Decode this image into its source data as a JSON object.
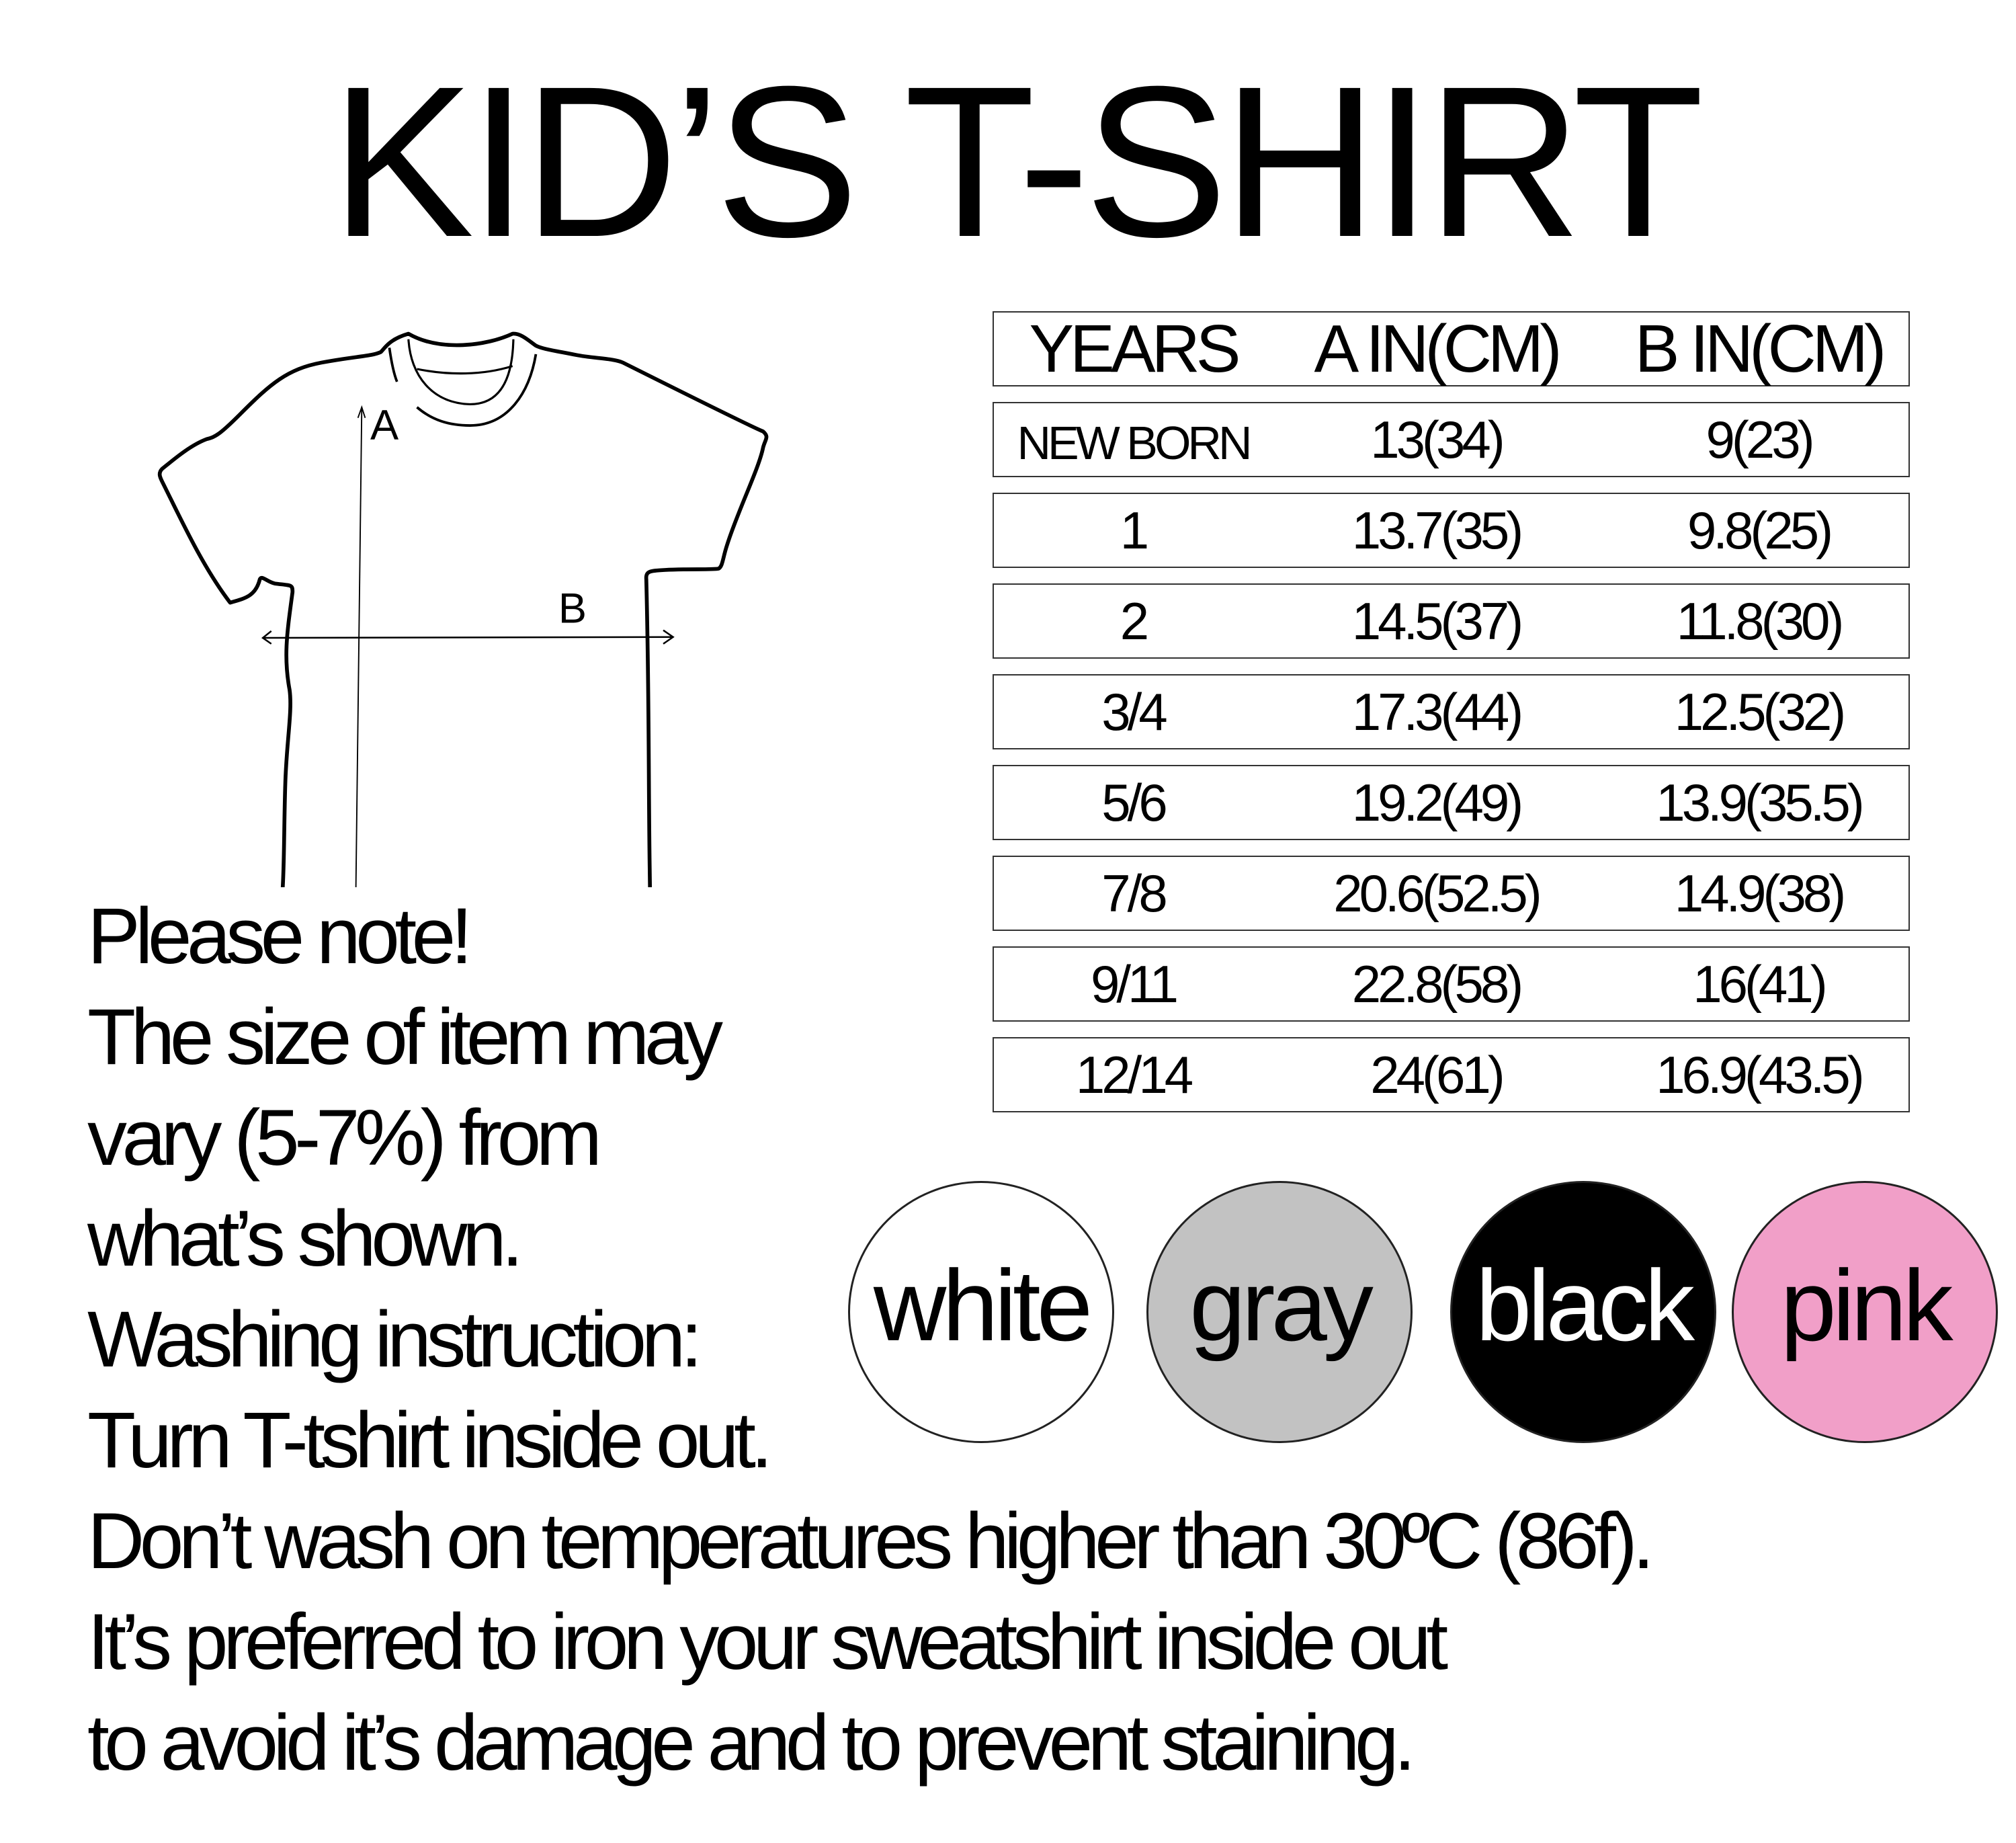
{
  "title": "KID’S T-SHIRT",
  "diagram": {
    "label_a": "A",
    "label_b": "B"
  },
  "size_table": {
    "headers": [
      "YEARS",
      "A  IN(CM)",
      "B  IN(CM)"
    ],
    "rows": [
      [
        "NEW BORN",
        "13(34)",
        "9(23)"
      ],
      [
        "1",
        "13.7(35)",
        "9.8(25)"
      ],
      [
        "2",
        "14.5(37)",
        "11.8(30)"
      ],
      [
        "3/4",
        "17.3(44)",
        "12.5(32)"
      ],
      [
        "5/6",
        "19.2(49)",
        "13.9(35.5)"
      ],
      [
        "7/8",
        "20.6(52.5)",
        "14.9(38)"
      ],
      [
        "9/11",
        "22.8(58)",
        "16(41)"
      ],
      [
        "12/14",
        "24(61)",
        "16.9(43.5)"
      ]
    ]
  },
  "note_lines": [
    "Please note!",
    "The size of item may",
    "vary (5-7%) from",
    "what’s shown.",
    "Washing instruction:",
    "Turn T-tshirt inside out.",
    "Don’t wash on temperatures higher than 30ºC  (86f).",
    "It’s preferred to iron your sweatshirt inside out",
    "to avoid it’s damage and to prevent staining."
  ],
  "colors": [
    {
      "name": "white",
      "hex": "#ffffff",
      "text": "#000000"
    },
    {
      "name": "gray",
      "hex": "#c2c2c2",
      "text": "#000000"
    },
    {
      "name": "black",
      "hex": "#000000",
      "text": "#ffffff"
    },
    {
      "name": "pink",
      "hex": "#f19fc8",
      "text": "#000000"
    }
  ]
}
